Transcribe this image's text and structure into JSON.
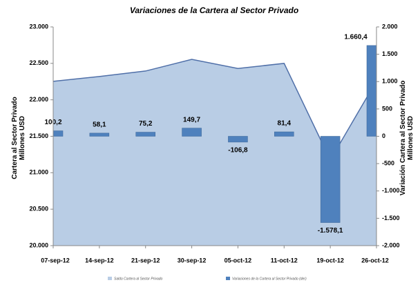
{
  "chart_data": {
    "type": "area-bar",
    "title": "Variaciones de la Cartera al Sector Privado",
    "y_label": "Cartera al Sector Privado\nMillones USD",
    "y2_label": "Variación  Cartera al Sector Privado\nMillones USD",
    "categories": [
      "07-sep-12",
      "14-sep-12",
      "21-sep-12",
      "30-sep-12",
      "05-oct-12",
      "11-oct-12",
      "19-oct-12",
      "26-oct-12"
    ],
    "series": [
      {
        "name": "Saldo Cartera al Sector Privado",
        "color": "#b9cde5",
        "line_color": "#4f6fa8",
        "values": [
          22253,
          22320,
          22395,
          22555,
          22430,
          22500,
          21175,
          22260
        ]
      },
      {
        "name": "Variaciones de la Cartera al Sector Privado (der)",
        "color": "#4f81bd",
        "axis": "y2",
        "values": [
          100.2,
          58.1,
          75.2,
          149.7,
          -106.8,
          81.4,
          -1578.1,
          1660.4
        ],
        "value_labels": [
          "100,2",
          "58,1",
          "75,2",
          "149,7",
          "-106,8",
          "81,4",
          "-1.578,1",
          "1.660,4"
        ]
      }
    ],
    "ylim": [
      20000,
      23000
    ],
    "yticks": [
      {
        "value": 20000,
        "label": "20.000"
      },
      {
        "value": 20500,
        "label": "20.500"
      },
      {
        "value": 21000,
        "label": "21.000"
      },
      {
        "value": 21500,
        "label": "21.500"
      },
      {
        "value": 22000,
        "label": "22.000"
      },
      {
        "value": 22500,
        "label": "22.500"
      },
      {
        "value": 23000,
        "label": "23.000"
      }
    ],
    "y2lim": [
      -2000,
      2000
    ],
    "y2ticks": [
      {
        "value": -2000,
        "label": "-2.000"
      },
      {
        "value": -1500,
        "label": "-1.500"
      },
      {
        "value": -1000,
        "label": "-1.000"
      },
      -500,
      0,
      500,
      {
        "value": 1000,
        "label": "1.000"
      },
      {
        "value": 1500,
        "label": "1.500"
      },
      {
        "value": 2000,
        "label": "2.000"
      }
    ]
  }
}
